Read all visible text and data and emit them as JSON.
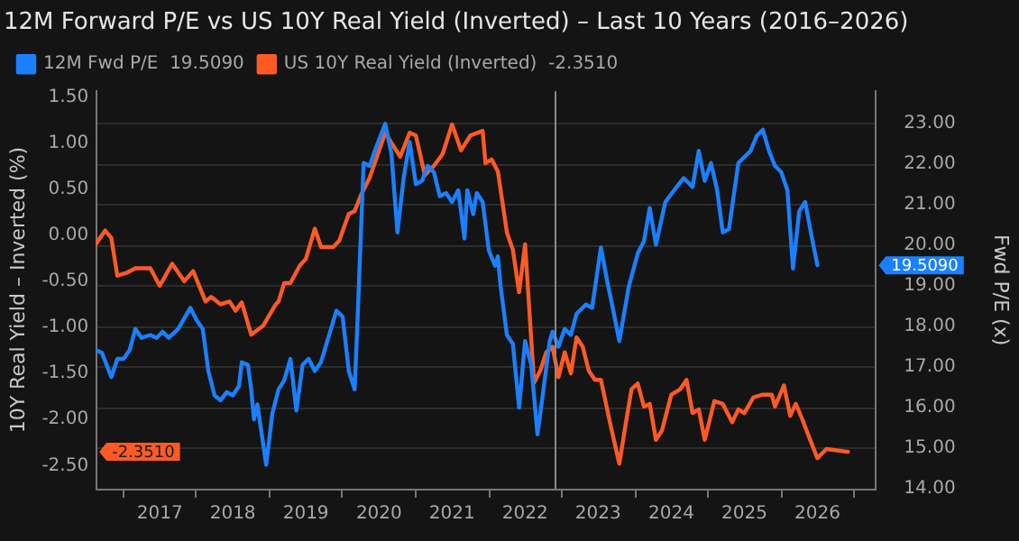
{
  "chart_data": {
    "type": "line",
    "title": "12M Forward P/E vs US 10Y Real Yield (Inverted) – Last 10 Years (2016–2026)",
    "ylabel": "10Y Real Yield – Inverted (%)",
    "y2label": "Fwd P/E (x)",
    "legend": "top left",
    "grid": "y",
    "marker": "none",
    "line_style": "solid",
    "xlim": [
      "2016-08-15",
      "2027-04-15"
    ],
    "xticks": [
      {
        "value": "2017-01-01",
        "label": null
      },
      {
        "value": "2017-07-01",
        "label": "2017"
      },
      {
        "value": "2018-01-01",
        "label": null
      },
      {
        "value": "2018-07-01",
        "label": "2018"
      },
      {
        "value": "2019-01-01",
        "label": null
      },
      {
        "value": "2019-07-01",
        "label": "2019"
      },
      {
        "value": "2020-01-01",
        "label": null
      },
      {
        "value": "2020-07-01",
        "label": "2020"
      },
      {
        "value": "2021-01-01",
        "label": null
      },
      {
        "value": "2021-07-01",
        "label": "2021"
      },
      {
        "value": "2022-01-01",
        "label": null
      },
      {
        "value": "2022-07-01",
        "label": "2022"
      },
      {
        "value": "2023-01-01",
        "label": null
      },
      {
        "value": "2023-07-01",
        "label": "2023"
      },
      {
        "value": "2024-01-01",
        "label": null
      },
      {
        "value": "2024-07-01",
        "label": "2024"
      },
      {
        "value": "2025-01-01",
        "label": null
      },
      {
        "value": "2025-07-01",
        "label": "2025"
      },
      {
        "value": "2026-01-01",
        "label": null
      },
      {
        "value": "2026-07-01",
        "label": "2026"
      },
      {
        "value": "2027-01-01",
        "label": null
      }
    ],
    "ylim": [
      -2.75,
      1.56
    ],
    "yticks": [
      {
        "value": 1.5,
        "label": "1.50"
      },
      {
        "value": 1.0,
        "label": "1.00"
      },
      {
        "value": 0.5,
        "label": "0.50"
      },
      {
        "value": 0,
        "label": "0.00"
      },
      {
        "value": -0.5,
        "label": "-0.50"
      },
      {
        "value": -1.0,
        "label": "-1.00"
      },
      {
        "value": -1.5,
        "label": "-1.50"
      },
      {
        "value": -2.0,
        "label": "-2.00"
      },
      {
        "value": -2.5,
        "label": "-2.50"
      }
    ],
    "y2lim": [
      14,
      23.8
    ],
    "y2ticks": [
      {
        "value": 14,
        "label": "14.00"
      },
      {
        "value": 15,
        "label": "15.00"
      },
      {
        "value": 16,
        "label": "16.00"
      },
      {
        "value": 17,
        "label": "17.00"
      },
      {
        "value": 18,
        "label": "18.00"
      },
      {
        "value": 19,
        "label": "19.00"
      },
      {
        "value": 20,
        "label": "20.00"
      },
      {
        "value": 21,
        "label": "21.00"
      },
      {
        "value": 22,
        "label": "22.00"
      },
      {
        "value": 23,
        "label": "23.00"
      }
    ],
    "ref_lines": [
      {
        "axis": "x",
        "value": "2022-11-30",
        "color": "#8a8a8a"
      }
    ],
    "series": [
      {
        "name": "12M Fwd P/E  19.5090",
        "color": "#1a80ff",
        "axis": "y2",
        "x": [
          "2016-08-15",
          "2016-09-15",
          "2016-11-01",
          "2016-12-01",
          "2017-01-01",
          "2017-02-01",
          "2017-03-01",
          "2017-04-01",
          "2017-05-15",
          "2017-06-15",
          "2017-07-15",
          "2017-08-15",
          "2017-10-01",
          "2017-12-01",
          "2018-01-01",
          "2018-02-01",
          "2018-03-01",
          "2018-04-01",
          "2018-05-01",
          "2018-06-01",
          "2018-07-01",
          "2018-08-01",
          "2018-08-15",
          "2018-09-15",
          "2018-10-01",
          "2018-10-15",
          "2018-11-01",
          "2018-12-15",
          "2019-01-15",
          "2019-02-15",
          "2019-03-15",
          "2019-04-15",
          "2019-05-15",
          "2019-06-15",
          "2019-07-15",
          "2019-08-15",
          "2019-09-15",
          "2019-12-01",
          "2020-01-01",
          "2020-02-01",
          "2020-03-01",
          "2020-03-15",
          "2020-04-15",
          "2020-05-15",
          "2020-06-15",
          "2020-08-01",
          "2020-09-01",
          "2020-10-01",
          "2020-11-01",
          "2020-12-01",
          "2021-01-01",
          "2021-02-01",
          "2021-03-01",
          "2021-04-01",
          "2021-05-01",
          "2021-06-01",
          "2021-07-01",
          "2021-08-01",
          "2021-09-01",
          "2021-09-15",
          "2021-10-15",
          "2021-11-01",
          "2021-12-01",
          "2022-01-01",
          "2022-02-01",
          "2022-02-15",
          "2022-03-01",
          "2022-04-01",
          "2022-05-01",
          "2022-06-01",
          "2022-07-01",
          "2022-08-01",
          "2022-09-01",
          "2022-10-01",
          "2022-11-01",
          "2022-11-15",
          "2022-12-15",
          "2023-01-15",
          "2023-02-15",
          "2023-03-15",
          "2023-05-01",
          "2023-06-01",
          "2023-07-15",
          "2023-08-15",
          "2023-09-15",
          "2023-10-15",
          "2023-12-01",
          "2024-01-15",
          "2024-02-15",
          "2024-03-15",
          "2024-04-15",
          "2024-06-01",
          "2024-07-15",
          "2024-09-01",
          "2024-10-15",
          "2024-11-15",
          "2024-12-15",
          "2025-01-15",
          "2025-02-15",
          "2025-03-15",
          "2025-04-15",
          "2025-06-01",
          "2025-08-01",
          "2025-09-01",
          "2025-10-01",
          "2025-11-01",
          "2025-12-01",
          "2026-01-01",
          "2026-02-01",
          "2026-03-01",
          "2026-04-01",
          "2026-05-01",
          "2026-06-01",
          "2026-07-01"
        ],
        "values": [
          17.42,
          17.35,
          16.75,
          17.2,
          17.2,
          17.42,
          17.94,
          17.72,
          17.79,
          17.72,
          17.87,
          17.72,
          17.94,
          18.46,
          18.16,
          17.94,
          16.9,
          16.3,
          16.18,
          16.38,
          16.3,
          16.53,
          17.12,
          17.05,
          16.45,
          15.71,
          16.08,
          14.59,
          15.86,
          16.45,
          16.67,
          17.2,
          15.93,
          17.05,
          17.2,
          16.9,
          17.12,
          18.39,
          18.24,
          16.9,
          16.45,
          18.09,
          22.03,
          21.96,
          22.4,
          23.0,
          22.26,
          20.32,
          21.66,
          22.55,
          21.51,
          21.59,
          21.96,
          21.81,
          21.21,
          21.29,
          21.07,
          21.36,
          20.17,
          21.36,
          20.77,
          21.29,
          21.07,
          19.87,
          19.5,
          19.73,
          18.98,
          17.79,
          17.57,
          16.0,
          17.64,
          17.05,
          15.34,
          16.45,
          17.64,
          17.87,
          17.5,
          17.94,
          17.79,
          18.31,
          18.54,
          18.46,
          19.95,
          19.13,
          18.39,
          17.64,
          18.98,
          19.8,
          20.1,
          20.92,
          20.02,
          21.07,
          21.36,
          21.66,
          21.44,
          22.33,
          21.59,
          22.03,
          21.36,
          20.32,
          20.4,
          22.03,
          22.33,
          22.7,
          22.85,
          22.33,
          21.96,
          21.81,
          21.36,
          19.43,
          20.84,
          21.07,
          20.25,
          19.51
        ]
      },
      {
        "name": "US 10Y Real Yield (Inverted)  -2.3510",
        "color": "#ff5a24",
        "axis": "y",
        "x": [
          "2016-08-15",
          "2016-10-01",
          "2016-11-01",
          "2016-12-01",
          "2017-01-15",
          "2017-03-01",
          "2017-05-15",
          "2017-07-01",
          "2017-09-01",
          "2017-11-01",
          "2017-12-15",
          "2018-02-15",
          "2018-03-15",
          "2018-05-01",
          "2018-06-15",
          "2018-07-15",
          "2018-08-15",
          "2018-10-01",
          "2018-12-01",
          "2019-02-01",
          "2019-02-15",
          "2019-03-15",
          "2019-04-15",
          "2019-06-01",
          "2019-07-01",
          "2019-08-15",
          "2019-09-15",
          "2019-11-15",
          "2019-12-15",
          "2020-02-01",
          "2020-03-01",
          "2020-04-01",
          "2020-05-15",
          "2020-08-01",
          "2020-09-01",
          "2020-10-15",
          "2020-12-01",
          "2021-01-01",
          "2021-02-15",
          "2021-04-01",
          "2021-05-15",
          "2021-07-01",
          "2021-08-15",
          "2021-10-01",
          "2021-12-01",
          "2021-12-15",
          "2022-01-15",
          "2022-02-15",
          "2022-04-01",
          "2022-05-01",
          "2022-06-01",
          "2022-07-01",
          "2022-08-01",
          "2022-08-15",
          "2022-09-15",
          "2022-10-15",
          "2022-11-15",
          "2022-12-15",
          "2023-01-15",
          "2023-02-15",
          "2023-03-15",
          "2023-04-15",
          "2023-05-15",
          "2023-06-15",
          "2023-07-15",
          "2023-09-01",
          "2023-10-15",
          "2023-11-15",
          "2023-12-15",
          "2024-01-15",
          "2024-02-15",
          "2024-03-15",
          "2024-04-15",
          "2024-05-15",
          "2024-07-01",
          "2024-08-15",
          "2024-09-15",
          "2024-10-15",
          "2024-11-15",
          "2024-12-15",
          "2025-02-01",
          "2025-03-15",
          "2025-05-01",
          "2025-06-01",
          "2025-07-01",
          "2025-08-15",
          "2025-10-01",
          "2025-11-15",
          "2025-12-01",
          "2026-01-15",
          "2026-02-15",
          "2026-03-15",
          "2026-04-15",
          "2026-05-15",
          "2026-07-01",
          "2026-08-15",
          "2026-12-01"
        ],
        "values": [
          -0.1,
          0.05,
          -0.03,
          -0.44,
          -0.41,
          -0.36,
          -0.36,
          -0.55,
          -0.31,
          -0.5,
          -0.39,
          -0.72,
          -0.67,
          -0.75,
          -0.72,
          -0.82,
          -0.73,
          -1.08,
          -0.98,
          -0.75,
          -0.72,
          -0.52,
          -0.52,
          -0.33,
          -0.26,
          0.07,
          -0.13,
          -0.13,
          -0.06,
          0.23,
          0.26,
          0.43,
          0.62,
          1.11,
          1.0,
          0.85,
          1.11,
          1.08,
          0.65,
          0.75,
          0.88,
          1.2,
          0.92,
          1.08,
          1.13,
          0.78,
          0.82,
          0.69,
          0.03,
          -0.16,
          -0.62,
          -0.1,
          -1.14,
          -1.6,
          -1.47,
          -1.27,
          -1.21,
          -1.54,
          -1.27,
          -1.5,
          -1.11,
          -1.21,
          -1.47,
          -1.57,
          -1.57,
          -2.06,
          -2.48,
          -2.06,
          -1.67,
          -1.61,
          -1.86,
          -1.83,
          -2.22,
          -2.12,
          -1.73,
          -1.67,
          -1.57,
          -1.93,
          -1.89,
          -2.22,
          -1.8,
          -1.83,
          -2.03,
          -1.89,
          -1.93,
          -1.76,
          -1.73,
          -1.73,
          -1.86,
          -1.63,
          -1.96,
          -1.83,
          -1.99,
          -2.16,
          -2.42,
          -2.32,
          -2.35
        ]
      }
    ],
    "annotations": [
      "19.5090",
      "-2.3510"
    ]
  }
}
